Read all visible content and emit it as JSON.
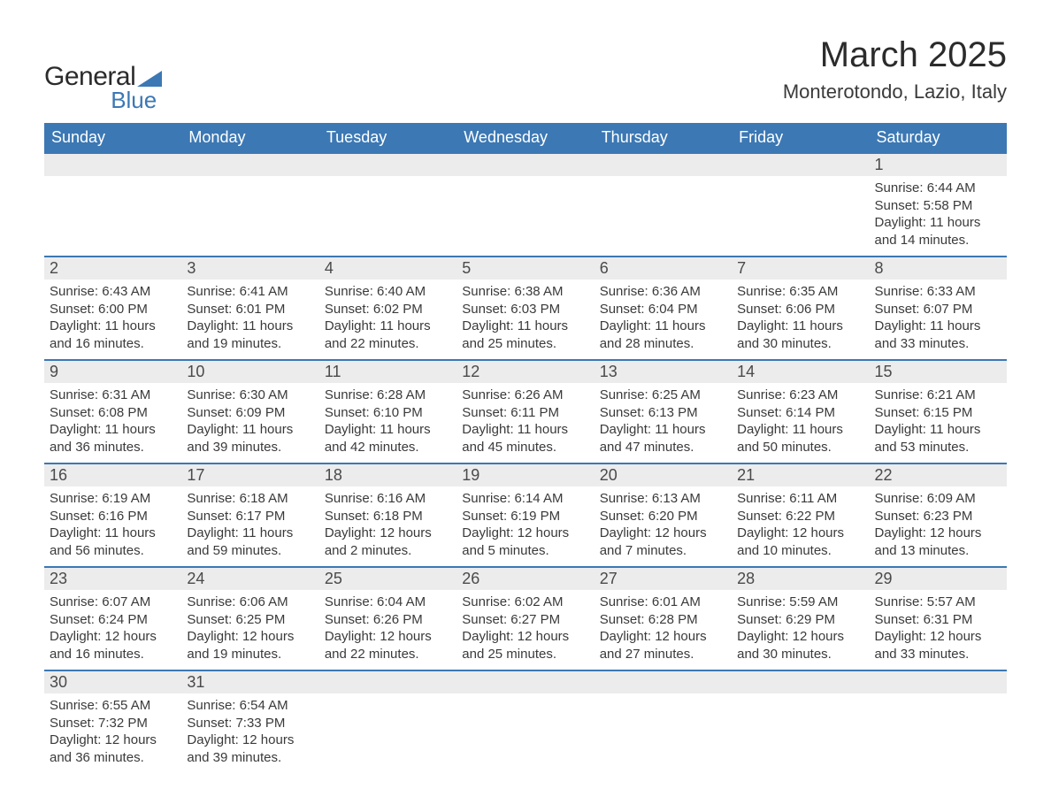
{
  "brand": {
    "name_main": "General",
    "name_sub": "Blue",
    "tri_color": "#3c78b4"
  },
  "title": "March 2025",
  "location": "Monterotondo, Lazio, Italy",
  "colors": {
    "header_bg": "#3c78b4",
    "header_fg": "#ffffff",
    "daynum_bg": "#ececec",
    "body_fg": "#3a3a3a",
    "row_border": "#3c78b4",
    "page_bg": "#ffffff"
  },
  "typography": {
    "title_fontsize_pt": 30,
    "location_fontsize_pt": 16,
    "header_fontsize_pt": 14,
    "daynum_fontsize_pt": 14,
    "body_fontsize_pt": 11
  },
  "layout": {
    "columns": 7,
    "rows": 6,
    "column_headers": [
      "Sunday",
      "Monday",
      "Tuesday",
      "Wednesday",
      "Thursday",
      "Friday",
      "Saturday"
    ]
  },
  "labels": {
    "sunrise_prefix": "Sunrise: ",
    "sunset_prefix": "Sunset: ",
    "daylight_prefix": "Daylight: "
  },
  "weeks": [
    [
      null,
      null,
      null,
      null,
      null,
      null,
      {
        "d": "1",
        "sunrise": "6:44 AM",
        "sunset": "5:58 PM",
        "daylight": "11 hours and 14 minutes."
      }
    ],
    [
      {
        "d": "2",
        "sunrise": "6:43 AM",
        "sunset": "6:00 PM",
        "daylight": "11 hours and 16 minutes."
      },
      {
        "d": "3",
        "sunrise": "6:41 AM",
        "sunset": "6:01 PM",
        "daylight": "11 hours and 19 minutes."
      },
      {
        "d": "4",
        "sunrise": "6:40 AM",
        "sunset": "6:02 PM",
        "daylight": "11 hours and 22 minutes."
      },
      {
        "d": "5",
        "sunrise": "6:38 AM",
        "sunset": "6:03 PM",
        "daylight": "11 hours and 25 minutes."
      },
      {
        "d": "6",
        "sunrise": "6:36 AM",
        "sunset": "6:04 PM",
        "daylight": "11 hours and 28 minutes."
      },
      {
        "d": "7",
        "sunrise": "6:35 AM",
        "sunset": "6:06 PM",
        "daylight": "11 hours and 30 minutes."
      },
      {
        "d": "8",
        "sunrise": "6:33 AM",
        "sunset": "6:07 PM",
        "daylight": "11 hours and 33 minutes."
      }
    ],
    [
      {
        "d": "9",
        "sunrise": "6:31 AM",
        "sunset": "6:08 PM",
        "daylight": "11 hours and 36 minutes."
      },
      {
        "d": "10",
        "sunrise": "6:30 AM",
        "sunset": "6:09 PM",
        "daylight": "11 hours and 39 minutes."
      },
      {
        "d": "11",
        "sunrise": "6:28 AM",
        "sunset": "6:10 PM",
        "daylight": "11 hours and 42 minutes."
      },
      {
        "d": "12",
        "sunrise": "6:26 AM",
        "sunset": "6:11 PM",
        "daylight": "11 hours and 45 minutes."
      },
      {
        "d": "13",
        "sunrise": "6:25 AM",
        "sunset": "6:13 PM",
        "daylight": "11 hours and 47 minutes."
      },
      {
        "d": "14",
        "sunrise": "6:23 AM",
        "sunset": "6:14 PM",
        "daylight": "11 hours and 50 minutes."
      },
      {
        "d": "15",
        "sunrise": "6:21 AM",
        "sunset": "6:15 PM",
        "daylight": "11 hours and 53 minutes."
      }
    ],
    [
      {
        "d": "16",
        "sunrise": "6:19 AM",
        "sunset": "6:16 PM",
        "daylight": "11 hours and 56 minutes."
      },
      {
        "d": "17",
        "sunrise": "6:18 AM",
        "sunset": "6:17 PM",
        "daylight": "11 hours and 59 minutes."
      },
      {
        "d": "18",
        "sunrise": "6:16 AM",
        "sunset": "6:18 PM",
        "daylight": "12 hours and 2 minutes."
      },
      {
        "d": "19",
        "sunrise": "6:14 AM",
        "sunset": "6:19 PM",
        "daylight": "12 hours and 5 minutes."
      },
      {
        "d": "20",
        "sunrise": "6:13 AM",
        "sunset": "6:20 PM",
        "daylight": "12 hours and 7 minutes."
      },
      {
        "d": "21",
        "sunrise": "6:11 AM",
        "sunset": "6:22 PM",
        "daylight": "12 hours and 10 minutes."
      },
      {
        "d": "22",
        "sunrise": "6:09 AM",
        "sunset": "6:23 PM",
        "daylight": "12 hours and 13 minutes."
      }
    ],
    [
      {
        "d": "23",
        "sunrise": "6:07 AM",
        "sunset": "6:24 PM",
        "daylight": "12 hours and 16 minutes."
      },
      {
        "d": "24",
        "sunrise": "6:06 AM",
        "sunset": "6:25 PM",
        "daylight": "12 hours and 19 minutes."
      },
      {
        "d": "25",
        "sunrise": "6:04 AM",
        "sunset": "6:26 PM",
        "daylight": "12 hours and 22 minutes."
      },
      {
        "d": "26",
        "sunrise": "6:02 AM",
        "sunset": "6:27 PM",
        "daylight": "12 hours and 25 minutes."
      },
      {
        "d": "27",
        "sunrise": "6:01 AM",
        "sunset": "6:28 PM",
        "daylight": "12 hours and 27 minutes."
      },
      {
        "d": "28",
        "sunrise": "5:59 AM",
        "sunset": "6:29 PM",
        "daylight": "12 hours and 30 minutes."
      },
      {
        "d": "29",
        "sunrise": "5:57 AM",
        "sunset": "6:31 PM",
        "daylight": "12 hours and 33 minutes."
      }
    ],
    [
      {
        "d": "30",
        "sunrise": "6:55 AM",
        "sunset": "7:32 PM",
        "daylight": "12 hours and 36 minutes."
      },
      {
        "d": "31",
        "sunrise": "6:54 AM",
        "sunset": "7:33 PM",
        "daylight": "12 hours and 39 minutes."
      },
      null,
      null,
      null,
      null,
      null
    ]
  ]
}
